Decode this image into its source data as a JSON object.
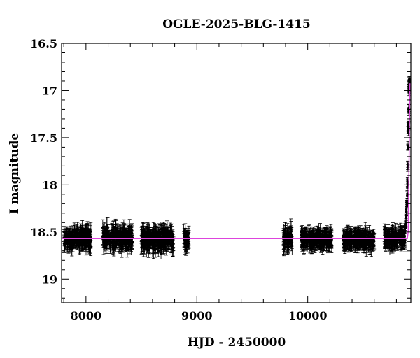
{
  "chart_data": {
    "type": "scatter",
    "title": "OGLE-2025-BLG-1415",
    "xlabel": "HJD - 2450000",
    "ylabel": "I magnitude",
    "xlim": [
      7780,
      10930
    ],
    "ylim": [
      19.25,
      16.5
    ],
    "y_inverted": true,
    "x_ticks": [
      8000,
      9000,
      10000
    ],
    "y_ticks": [
      16.5,
      17,
      17.5,
      18,
      18.5,
      19
    ],
    "y_tick_labels": [
      "16.5",
      "17",
      "17.5",
      "18",
      "18.5",
      "19"
    ],
    "grid": false,
    "legend": "none",
    "colors": {
      "points": "#000000",
      "model": "#dd44dd"
    },
    "baseline_magnitude": 18.57,
    "observing_seasons": [
      {
        "start": 7800,
        "end": 8050,
        "mean_mag": 18.57,
        "scatter": 0.08
      },
      {
        "start": 8150,
        "end": 8420,
        "mean_mag": 18.56,
        "scatter": 0.09
      },
      {
        "start": 8500,
        "end": 8790,
        "mean_mag": 18.58,
        "scatter": 0.09
      },
      {
        "start": 8880,
        "end": 8930,
        "mean_mag": 18.58,
        "scatter": 0.08
      },
      {
        "start": 9780,
        "end": 9860,
        "mean_mag": 18.57,
        "scatter": 0.09
      },
      {
        "start": 9940,
        "end": 10220,
        "mean_mag": 18.58,
        "scatter": 0.06
      },
      {
        "start": 10320,
        "end": 10600,
        "mean_mag": 18.58,
        "scatter": 0.06
      },
      {
        "start": 10690,
        "end": 10880,
        "mean_mag": 18.57,
        "scatter": 0.06
      }
    ],
    "event": {
      "t_start": 10880,
      "t_peak": 10920,
      "peak_mag": 16.92,
      "points": [
        [
          10882,
          18.45
        ],
        [
          10886,
          18.38
        ],
        [
          10890,
          18.3
        ],
        [
          10894,
          18.2
        ],
        [
          10898,
          18.1
        ],
        [
          10901,
          17.98
        ],
        [
          10903,
          17.8
        ],
        [
          10905,
          17.6
        ],
        [
          10907,
          17.4
        ],
        [
          10909,
          17.36
        ],
        [
          10911,
          17.2
        ],
        [
          10913,
          17.0
        ],
        [
          10915,
          16.94
        ],
        [
          10917,
          16.92
        ],
        [
          10919,
          16.93
        ],
        [
          10921,
          16.96
        ]
      ]
    },
    "model": {
      "baseline": 18.57,
      "rise_start": 10900,
      "peak_time": 10918,
      "peak_mag": 16.93
    }
  }
}
